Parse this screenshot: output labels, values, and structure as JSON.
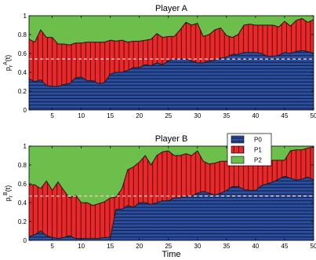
{
  "chart_data": [
    {
      "type": "area",
      "stacked": true,
      "title": "Player A",
      "ylabel": "p_r^A(t)",
      "xlabel": "",
      "xlim": [
        1,
        50
      ],
      "ylim": [
        0,
        1
      ],
      "xticks": [
        5,
        10,
        15,
        20,
        25,
        30,
        35,
        40,
        45,
        50
      ],
      "yticks": [
        0,
        0.2,
        0.4,
        0.6,
        0.8,
        1
      ],
      "xtick_labels": [
        "5",
        "10",
        "15",
        "20",
        "25",
        "30",
        "35",
        "40",
        "45",
        "50"
      ],
      "ytick_labels": [
        "0",
        "0.2",
        "0.4",
        "0.6",
        "0.8",
        "1"
      ],
      "grid": false,
      "reference_line": 0.54,
      "x": [
        1,
        2,
        3,
        4,
        5,
        6,
        7,
        8,
        9,
        10,
        11,
        12,
        13,
        14,
        15,
        16,
        17,
        18,
        19,
        20,
        21,
        22,
        23,
        24,
        25,
        26,
        27,
        28,
        29,
        30,
        31,
        32,
        33,
        34,
        35,
        36,
        37,
        38,
        39,
        40,
        41,
        42,
        43,
        44,
        45,
        46,
        47,
        48,
        49,
        50
      ],
      "series": [
        {
          "name": "P0",
          "color": "#2b4f9e",
          "pattern": "horizontal-lines",
          "values": [
            0.33,
            0.3,
            0.32,
            0.26,
            0.25,
            0.25,
            0.27,
            0.28,
            0.34,
            0.35,
            0.31,
            0.31,
            0.28,
            0.29,
            0.38,
            0.4,
            0.4,
            0.42,
            0.45,
            0.45,
            0.48,
            0.47,
            0.5,
            0.48,
            0.52,
            0.54,
            0.54,
            0.54,
            0.52,
            0.5,
            0.5,
            0.52,
            0.53,
            0.55,
            0.56,
            0.59,
            0.59,
            0.61,
            0.61,
            0.61,
            0.6,
            0.57,
            0.57,
            0.58,
            0.61,
            0.6,
            0.62,
            0.63,
            0.62,
            0.6
          ]
        },
        {
          "name": "P1",
          "color": "#e8282a",
          "pattern": "vertical-lines",
          "values": [
            0.42,
            0.42,
            0.53,
            0.51,
            0.52,
            0.45,
            0.43,
            0.41,
            0.37,
            0.36,
            0.41,
            0.41,
            0.44,
            0.43,
            0.36,
            0.33,
            0.34,
            0.3,
            0.28,
            0.28,
            0.26,
            0.28,
            0.31,
            0.29,
            0.26,
            0.24,
            0.31,
            0.39,
            0.38,
            0.42,
            0.28,
            0.28,
            0.32,
            0.32,
            0.23,
            0.18,
            0.21,
            0.29,
            0.3,
            0.29,
            0.3,
            0.33,
            0.33,
            0.3,
            0.33,
            0.29,
            0.33,
            0.34,
            0.31,
            0.36
          ]
        },
        {
          "name": "P2",
          "color": "#6cbf4a",
          "pattern": "solid",
          "values": [
            0.25,
            0.28,
            0.15,
            0.23,
            0.23,
            0.3,
            0.3,
            0.31,
            0.29,
            0.29,
            0.28,
            0.28,
            0.28,
            0.28,
            0.26,
            0.27,
            0.26,
            0.28,
            0.27,
            0.27,
            0.26,
            0.25,
            0.19,
            0.23,
            0.22,
            0.22,
            0.15,
            0.07,
            0.1,
            0.08,
            0.22,
            0.2,
            0.15,
            0.13,
            0.21,
            0.23,
            0.2,
            0.1,
            0.09,
            0.1,
            0.1,
            0.1,
            0.1,
            0.12,
            0.06,
            0.11,
            0.05,
            0.03,
            0.07,
            0.04
          ]
        }
      ]
    },
    {
      "type": "area",
      "stacked": true,
      "title": "Player B",
      "ylabel": "p_r^B(t)",
      "xlabel": "Time",
      "xlim": [
        1,
        50
      ],
      "ylim": [
        0,
        1
      ],
      "xticks": [
        5,
        10,
        15,
        20,
        25,
        30,
        35,
        40,
        45,
        50
      ],
      "yticks": [
        0,
        0.2,
        0.4,
        0.6,
        0.8,
        1
      ],
      "xtick_labels": [
        "5",
        "10",
        "15",
        "20",
        "25",
        "30",
        "35",
        "40",
        "45",
        "50"
      ],
      "ytick_labels": [
        "0",
        "0.2",
        "0.4",
        "0.6",
        "0.8",
        "1"
      ],
      "grid": false,
      "reference_line": 0.47,
      "legend": {
        "placement": "top-right-inside",
        "entries": [
          "P0",
          "P1",
          "P2"
        ]
      },
      "x": [
        1,
        2,
        3,
        4,
        5,
        6,
        7,
        8,
        9,
        10,
        11,
        12,
        13,
        14,
        15,
        16,
        17,
        18,
        19,
        20,
        21,
        22,
        23,
        24,
        25,
        26,
        27,
        28,
        29,
        30,
        31,
        32,
        33,
        34,
        35,
        36,
        37,
        38,
        39,
        40,
        41,
        42,
        43,
        44,
        45,
        46,
        47,
        48,
        49,
        50
      ],
      "series": [
        {
          "name": "P0",
          "color": "#2b4f9e",
          "pattern": "horizontal-lines",
          "values": [
            0.04,
            0.06,
            0.1,
            0.05,
            0.03,
            0.02,
            0.03,
            0.05,
            0.02,
            0.02,
            0.02,
            0.02,
            0.02,
            0.03,
            0.03,
            0.33,
            0.33,
            0.37,
            0.35,
            0.4,
            0.4,
            0.38,
            0.4,
            0.42,
            0.42,
            0.45,
            0.45,
            0.47,
            0.47,
            0.5,
            0.52,
            0.5,
            0.48,
            0.5,
            0.53,
            0.57,
            0.57,
            0.54,
            0.53,
            0.53,
            0.58,
            0.6,
            0.62,
            0.65,
            0.68,
            0.66,
            0.64,
            0.65,
            0.67,
            0.64
          ]
        },
        {
          "name": "P1",
          "color": "#e8282a",
          "pattern": "vertical-lines",
          "values": [
            0.55,
            0.53,
            0.45,
            0.58,
            0.5,
            0.6,
            0.5,
            0.4,
            0.46,
            0.38,
            0.38,
            0.35,
            0.37,
            0.38,
            0.42,
            0.13,
            0.22,
            0.38,
            0.43,
            0.43,
            0.5,
            0.42,
            0.5,
            0.52,
            0.53,
            0.45,
            0.45,
            0.45,
            0.43,
            0.45,
            0.32,
            0.31,
            0.34,
            0.34,
            0.31,
            0.26,
            0.3,
            0.34,
            0.32,
            0.31,
            0.22,
            0.23,
            0.23,
            0.2,
            0.17,
            0.29,
            0.32,
            0.31,
            0.31,
            0.35
          ]
        },
        {
          "name": "P2",
          "color": "#6cbf4a",
          "pattern": "solid",
          "values": [
            0.41,
            0.41,
            0.45,
            0.37,
            0.47,
            0.38,
            0.47,
            0.55,
            0.52,
            0.6,
            0.6,
            0.63,
            0.61,
            0.59,
            0.55,
            0.54,
            0.45,
            0.25,
            0.22,
            0.17,
            0.1,
            0.2,
            0.1,
            0.06,
            0.05,
            0.1,
            0.1,
            0.08,
            0.1,
            0.05,
            0.16,
            0.19,
            0.18,
            0.16,
            0.16,
            0.17,
            0.13,
            0.12,
            0.15,
            0.16,
            0.2,
            0.17,
            0.15,
            0.15,
            0.15,
            0.05,
            0.04,
            0.04,
            0.02,
            0.01
          ]
        }
      ]
    }
  ]
}
